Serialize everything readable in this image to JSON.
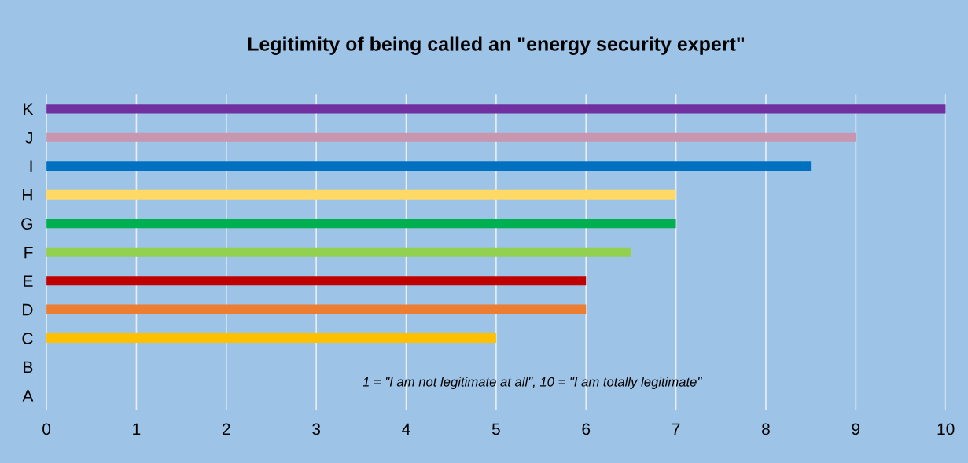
{
  "chart_data": {
    "type": "bar",
    "orientation": "horizontal",
    "title": "Legitimity of being called an \"energy security expert\"",
    "categories": [
      "K",
      "J",
      "I",
      "H",
      "G",
      "F",
      "E",
      "D",
      "C",
      "B",
      "A"
    ],
    "values": [
      10,
      9,
      8.5,
      7,
      7,
      6.5,
      6,
      6,
      5,
      null,
      null
    ],
    "colors": [
      "#7030a0",
      "#c896ae",
      "#0070c0",
      "#ffd966",
      "#00b050",
      "#92d050",
      "#c00000",
      "#ed7d31",
      "#ffc000",
      null,
      null
    ],
    "xlim": [
      0,
      10
    ],
    "xticks": [
      0,
      1,
      2,
      3,
      4,
      5,
      6,
      7,
      8,
      9,
      10
    ],
    "grid": "x",
    "legend": false,
    "annotations": [
      "1 = \"I am not legitimate at all\", 10 = \"I am totally legitimate\""
    ]
  }
}
